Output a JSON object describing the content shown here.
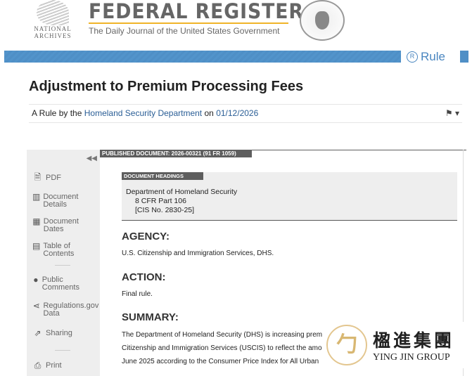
{
  "header": {
    "archives_line1": "NATIONAL",
    "archives_line2": "ARCHIVES",
    "title": "FEDERAL REGISTER",
    "subtitle": "The Daily Journal of the United States Government",
    "rule_badge": "Rule",
    "rule_icon": "R"
  },
  "document": {
    "title": "Adjustment to Premium Processing Fees",
    "byline_prefix": "A Rule by the",
    "agency_link": "Homeland Security Department",
    "byline_on": "on",
    "date": "01/12/2026"
  },
  "sidebar": {
    "items": [
      {
        "label": "PDF",
        "icon": "pdf-icon"
      },
      {
        "label": "Document Details",
        "icon": "book-icon"
      },
      {
        "label": "Document Dates",
        "icon": "calendar-icon"
      },
      {
        "label": "Table of Contents",
        "icon": "list-icon"
      },
      {
        "label": "Public Comments",
        "icon": "comment-icon"
      },
      {
        "label": "Regulations.gov Data",
        "icon": "share-nodes-icon"
      },
      {
        "label": "Sharing",
        "icon": "share-icon"
      },
      {
        "label": "Print",
        "icon": "print-icon"
      }
    ]
  },
  "content": {
    "published": "PUBLISHED DOCUMENT: 2026-00321 (91 FR 1059)",
    "headings_label": "DOCUMENT HEADINGS",
    "heading_dept": "Department of Homeland Security",
    "heading_cfr": "8 CFR Part 106",
    "heading_cis": "[CIS No. 2830-25]",
    "agency_h": "AGENCY:",
    "agency_text": "U.S. Citizenship and Immigration Services, DHS.",
    "action_h": "ACTION:",
    "action_text": "Final rule.",
    "summary_h": "SUMMARY:",
    "summary_lines": [
      "The Department of Homeland Security (DHS) is increasing prem",
      "Citizenship and Immigration Services (USCIS) to reflect the amo",
      "June 2025 according to the Consumer Price Index for All Urban"
    ]
  },
  "watermark": {
    "chinese": "楹進集團",
    "english": "YING JIN GROUP"
  }
}
